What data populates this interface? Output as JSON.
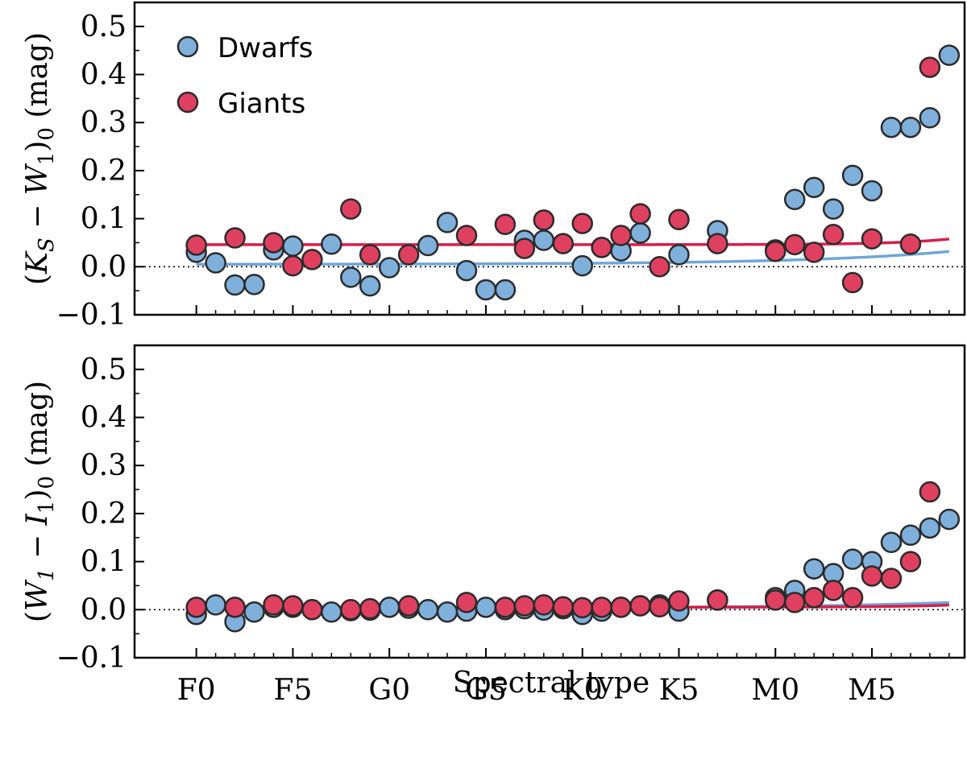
{
  "colors": {
    "dwarfs": "#7fb0dc",
    "dwarfs_line": "#6fa6d6",
    "giants": "#e0405f",
    "giants_line": "#d81e48",
    "marker_edge": "#2b2b2b",
    "axes": "#000000"
  },
  "chart_data": [
    {
      "type": "scatter",
      "title": "",
      "xlabel": "",
      "ylabel_text": "(K_S − W_1)_0 (mag)",
      "ylabel_parts": {
        "open": "(",
        "a": "K",
        "a_sub": "S",
        "minus": " − ",
        "b": "W",
        "b_sub": "1",
        "close": ")",
        "close_sub": "0",
        "unit": " (mag)"
      },
      "xlim": [
        -3.2,
        39.8
      ],
      "ylim": [
        -0.1,
        0.55
      ],
      "yticks": [
        -0.1,
        0.0,
        0.1,
        0.2,
        0.3,
        0.4,
        0.5
      ],
      "ytick_labels": [
        "−0.1",
        "0.0",
        "0.1",
        "0.2",
        "0.3",
        "0.4",
        "0.5"
      ],
      "zero_line": true,
      "legend": {
        "position": "top-left",
        "entries": [
          "Dwarfs",
          "Giants"
        ]
      },
      "series": [
        {
          "name": "Dwarfs",
          "x": [
            0,
            1,
            2,
            3,
            4,
            5,
            7,
            8,
            9,
            10,
            12,
            13,
            14,
            15,
            16,
            17,
            18,
            20,
            21,
            22,
            23,
            25,
            27,
            30,
            31,
            32,
            33,
            34,
            35,
            36,
            37,
            38,
            39
          ],
          "y": [
            0.03,
            0.008,
            -0.038,
            -0.037,
            0.035,
            0.043,
            0.047,
            -0.022,
            -0.04,
            -0.002,
            0.044,
            0.092,
            -0.008,
            -0.048,
            -0.048,
            0.055,
            0.055,
            0.002,
            0.04,
            0.033,
            0.07,
            0.025,
            0.075,
            0.035,
            0.14,
            0.165,
            0.12,
            0.19,
            0.158,
            0.29,
            0.29,
            0.31,
            0.44
          ]
        },
        {
          "name": "Giants",
          "x": [
            0,
            2,
            4,
            5,
            6,
            8,
            9,
            11,
            14,
            16,
            17,
            18,
            19,
            20,
            21,
            22,
            23,
            24,
            25,
            27,
            30,
            31,
            32,
            33,
            34,
            35,
            37,
            38
          ],
          "y": [
            0.045,
            0.06,
            0.05,
            0.002,
            0.015,
            0.12,
            0.025,
            0.025,
            0.065,
            0.088,
            0.038,
            0.097,
            0.048,
            0.09,
            0.04,
            0.065,
            0.11,
            0.0,
            0.098,
            0.048,
            0.032,
            0.046,
            0.03,
            0.067,
            -0.033,
            0.058,
            0.047,
            0.415
          ]
        }
      ],
      "fits": [
        {
          "name": "Dwarfs fit",
          "model": "exp",
          "a": 0.005,
          "b": 0.008,
          "c": 0.134,
          "x0": 0,
          "x1": 39
        },
        {
          "name": "Giants fit",
          "model": "exp",
          "a": 0.046,
          "b": 0.0005,
          "c": 0.35,
          "x0": 0,
          "x1": 39
        }
      ]
    },
    {
      "type": "scatter",
      "title": "",
      "xlabel": "Spectral type",
      "ylabel_text": "(W_1 − I_1)_0 (mag)",
      "ylabel_parts": {
        "open": "(",
        "a": "W",
        "a_sub": "1",
        "minus": " − ",
        "b": "I",
        "b_sub": "1",
        "close": ")",
        "close_sub": "0",
        "unit": " (mag)"
      },
      "xlim": [
        -3.2,
        39.8
      ],
      "ylim": [
        -0.1,
        0.55
      ],
      "yticks": [
        -0.1,
        0.0,
        0.1,
        0.2,
        0.3,
        0.4,
        0.5
      ],
      "ytick_labels": [
        "−0.1",
        "0.0",
        "0.1",
        "0.2",
        "0.3",
        "0.4",
        "0.5"
      ],
      "xticks": [
        0,
        5,
        10,
        15,
        20,
        25,
        30,
        35
      ],
      "xtick_labels": [
        "F0",
        "F5",
        "G0",
        "G5",
        "K0",
        "K5",
        "M0",
        "M5"
      ],
      "zero_line": true,
      "series": [
        {
          "name": "Dwarfs",
          "x": [
            0,
            1,
            2,
            3,
            4,
            5,
            7,
            8,
            9,
            10,
            11,
            12,
            13,
            14,
            15,
            16,
            17,
            18,
            19,
            20,
            21,
            22,
            23,
            24,
            25,
            27,
            30,
            31,
            32,
            33,
            34,
            35,
            36,
            37,
            38,
            39
          ],
          "y": [
            -0.01,
            0.01,
            -0.025,
            -0.005,
            0.005,
            0.005,
            -0.005,
            -0.002,
            -0.001,
            0.005,
            0.003,
            0.0,
            -0.005,
            -0.003,
            0.005,
            0.0,
            0.002,
            -0.001,
            0.002,
            -0.01,
            -0.003,
            0.005,
            0.008,
            0.01,
            -0.003,
            0.02,
            0.025,
            0.04,
            0.085,
            0.075,
            0.105,
            0.1,
            0.14,
            0.155,
            0.17,
            0.188
          ]
        },
        {
          "name": "Giants",
          "x": [
            0,
            2,
            4,
            5,
            6,
            8,
            9,
            11,
            14,
            16,
            17,
            18,
            19,
            20,
            21,
            22,
            23,
            24,
            25,
            27,
            30,
            31,
            32,
            33,
            34,
            35,
            36,
            37,
            38
          ],
          "y": [
            0.005,
            0.005,
            0.01,
            0.008,
            0.0,
            0.0,
            0.002,
            0.008,
            0.015,
            0.005,
            0.008,
            0.01,
            0.006,
            0.004,
            0.005,
            0.005,
            0.008,
            0.006,
            0.018,
            0.02,
            0.02,
            0.015,
            0.025,
            0.04,
            0.025,
            0.07,
            0.065,
            0.1,
            0.245
          ]
        }
      ],
      "fits": [
        {
          "name": "Dwarfs fit",
          "model": "exp",
          "a": 0.003,
          "b": 0.004,
          "c": 0.12,
          "x0": 0,
          "x1": 39
        },
        {
          "name": "Giants fit",
          "model": "exp",
          "a": 0.005,
          "b": 0.0003,
          "c": 0.3,
          "x0": 0,
          "x1": 39
        }
      ]
    }
  ]
}
